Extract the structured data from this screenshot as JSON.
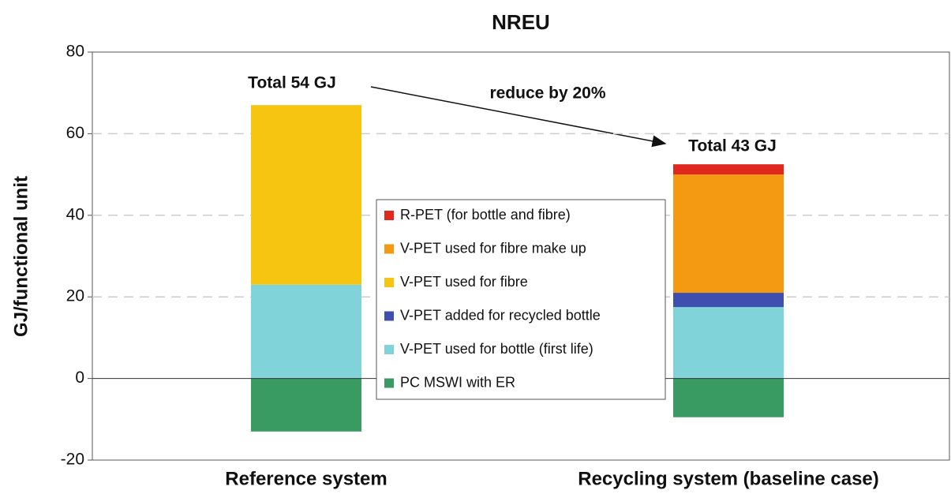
{
  "chart_data": {
    "type": "bar",
    "stacked": true,
    "title": "NREU",
    "y_label": "GJ/functional unit",
    "categories": [
      "Reference system",
      "Recycling system (baseline case)"
    ],
    "series": [
      {
        "name": "R-PET (for bottle and fibre)",
        "color": "#e0281e",
        "values": [
          null,
          2.5
        ]
      },
      {
        "name": "V-PET used for fibre make up",
        "color": "#f39a12",
        "values": [
          null,
          29
        ]
      },
      {
        "name": "V-PET used for fibre",
        "color": "#f6c511",
        "values": [
          44,
          null
        ]
      },
      {
        "name": "V-PET added for recycled bottle",
        "color": "#3f4fb0",
        "values": [
          null,
          3.5
        ]
      },
      {
        "name": "V-PET used for bottle (first life)",
        "color": "#7fd3d9",
        "values": [
          23,
          17.5
        ]
      },
      {
        "name": "PC MSWI with ER",
        "color": "#3a9b62",
        "values": [
          -13,
          -9.5
        ]
      }
    ],
    "ylim": [
      -20,
      80
    ],
    "yticks": [
      -20,
      0,
      20,
      40,
      60,
      80
    ],
    "grid": true,
    "annotations": {
      "reference_total": "Total 54 GJ",
      "recycling_total": "Total 43 GJ",
      "reduction": "reduce by 20%"
    }
  }
}
